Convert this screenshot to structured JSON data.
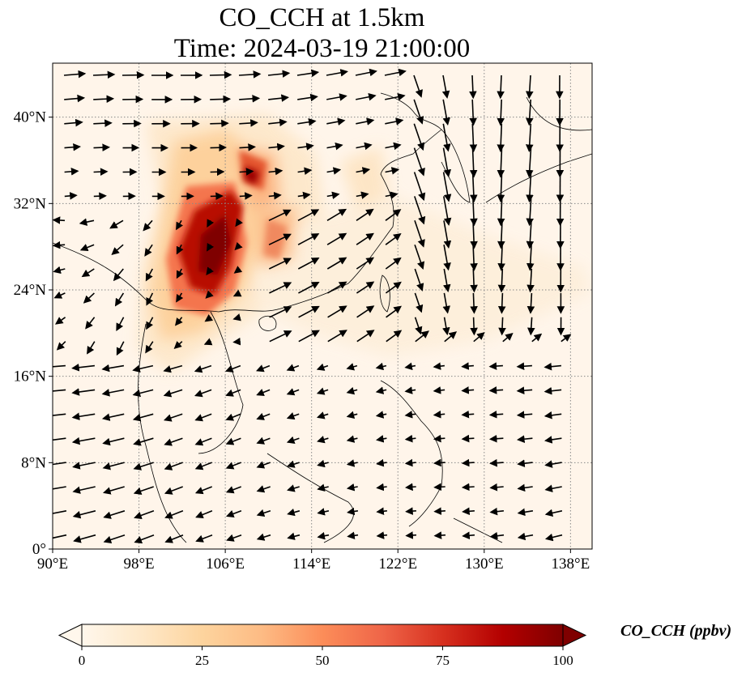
{
  "title": {
    "line1": "CO_CCH at 1.5km",
    "line2": "Time: 2024-03-19 21:00:00"
  },
  "map": {
    "variable": "CO_CCH",
    "level": "1.5km",
    "lon_range": [
      90,
      140
    ],
    "lat_range": [
      0,
      45
    ],
    "lon_ticks": [
      90,
      98,
      106,
      114,
      122,
      130,
      138
    ],
    "lat_ticks": [
      0,
      8,
      16,
      24,
      32,
      40
    ],
    "lon_tick_labels": [
      "90°E",
      "98°E",
      "106°E",
      "114°E",
      "122°E",
      "130°E",
      "138°E"
    ],
    "lat_tick_labels": [
      "0°",
      "8°N",
      "16°N",
      "24°N",
      "32°N",
      "40°N"
    ],
    "gridlines": "dotted",
    "vectors": "wind arrows",
    "background_color": "#fff5ea"
  },
  "colorbar": {
    "label": "CO_CCH (ppbv)",
    "ticks": [
      0,
      25,
      50,
      75,
      100
    ],
    "tick_labels": [
      "0",
      "25",
      "50",
      "75",
      "100"
    ],
    "range": [
      0,
      100
    ],
    "colormap": "OrRd",
    "extend": "both",
    "colors": [
      "#fff7ec",
      "#fee8c8",
      "#fdd49e",
      "#fdbb84",
      "#fc8d59",
      "#ef6548",
      "#d7301f",
      "#b30000",
      "#7f0000"
    ]
  }
}
